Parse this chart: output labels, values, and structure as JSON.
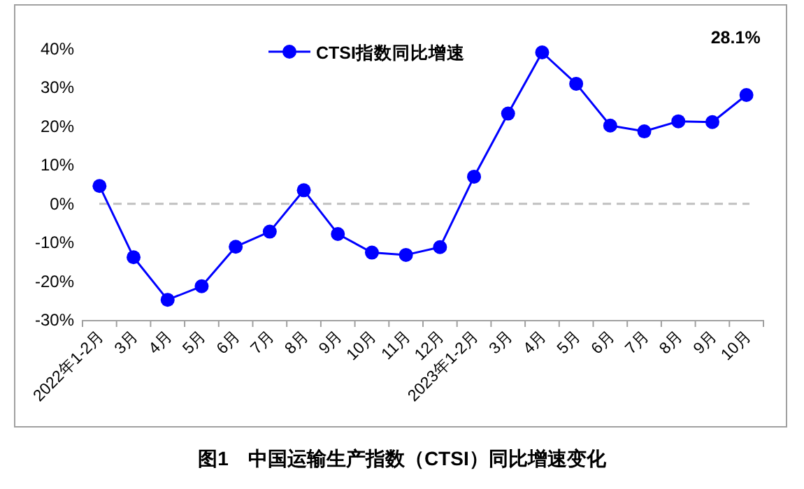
{
  "chart_data": {
    "type": "line",
    "title": "图1　中国运输生产指数（CTSI）同比增速变化",
    "categories": [
      "2022年1-2月",
      "3月",
      "4月",
      "5月",
      "6月",
      "7月",
      "8月",
      "9月",
      "10月",
      "11月",
      "12月",
      "2023年1-2月",
      "3月",
      "4月",
      "5月",
      "6月",
      "7月",
      "8月",
      "9月",
      "10月"
    ],
    "series": [
      {
        "name": "CTSI指数同比增速",
        "color": "#0000ff",
        "values": [
          4.6,
          -13.8,
          -24.8,
          -21.3,
          -11.1,
          -7.2,
          3.5,
          -7.8,
          -12.6,
          -13.2,
          -11.2,
          7.0,
          23.3,
          39.1,
          31.0,
          20.2,
          18.7,
          21.3,
          21.1,
          28.1
        ],
        "value_labels": [
          null,
          null,
          null,
          null,
          null,
          null,
          null,
          null,
          null,
          null,
          null,
          null,
          null,
          null,
          null,
          null,
          null,
          null,
          null,
          "28.1%"
        ]
      }
    ],
    "ylim": [
      -30,
      40
    ],
    "yticks": [
      {
        "value": -30,
        "label": "-30%"
      },
      {
        "value": -20,
        "label": "-20%"
      },
      {
        "value": -10,
        "label": "-10%"
      },
      {
        "value": 0,
        "label": "0%"
      },
      {
        "value": 10,
        "label": "10%"
      },
      {
        "value": 20,
        "label": "20%"
      },
      {
        "value": 30,
        "label": "30%"
      },
      {
        "value": 40,
        "label": "40%"
      }
    ],
    "ref_lines": [
      {
        "axis": "y",
        "value": 0,
        "color": "#c0c0c0",
        "line_style": "dashed"
      }
    ],
    "legend": "top",
    "marker": "circle",
    "line_style": "solid",
    "grid": false
  }
}
